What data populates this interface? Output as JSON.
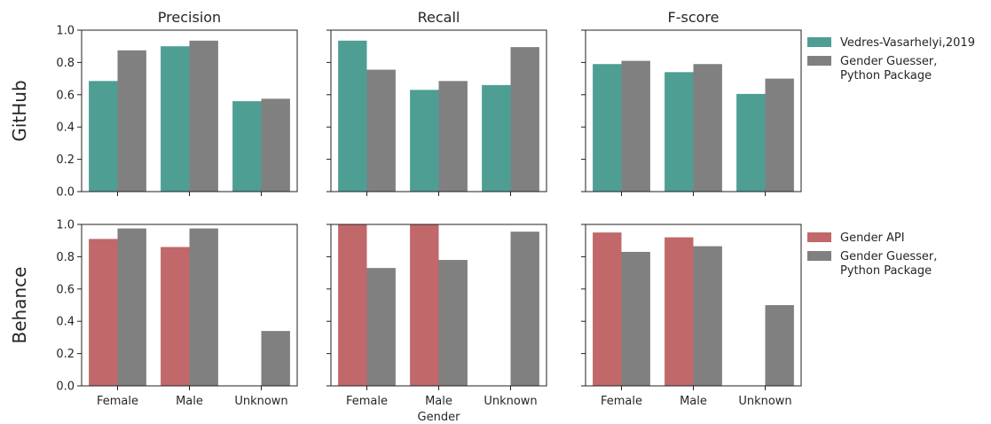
{
  "colors": {
    "teal": "#4e9e93",
    "red": "#c0686a",
    "gray": "#808080"
  },
  "chart_data": [
    {
      "type": "bar",
      "row": "GitHub",
      "title": "Precision",
      "categories": [
        "Female",
        "Male",
        "Unknown"
      ],
      "series": [
        {
          "name": "Vedres-Vasarhelyi,2019",
          "color": "teal",
          "values": [
            0.685,
            0.9,
            0.56
          ]
        },
        {
          "name": "Gender Guesser, Python Package",
          "color": "gray",
          "values": [
            0.875,
            0.935,
            0.575
          ]
        }
      ],
      "ylim": [
        0,
        1
      ],
      "yticks": [
        "0.0",
        "0.2",
        "0.4",
        "0.6",
        "0.8",
        "1.0"
      ],
      "xlabel": ""
    },
    {
      "type": "bar",
      "row": "GitHub",
      "title": "Recall",
      "categories": [
        "Female",
        "Male",
        "Unknown"
      ],
      "series": [
        {
          "name": "Vedres-Vasarhelyi,2019",
          "color": "teal",
          "values": [
            0.935,
            0.63,
            0.66
          ]
        },
        {
          "name": "Gender Guesser, Python Package",
          "color": "gray",
          "values": [
            0.755,
            0.685,
            0.895
          ]
        }
      ],
      "ylim": [
        0,
        1
      ],
      "xlabel": ""
    },
    {
      "type": "bar",
      "row": "GitHub",
      "title": "F-score",
      "categories": [
        "Female",
        "Male",
        "Unknown"
      ],
      "series": [
        {
          "name": "Vedres-Vasarhelyi,2019",
          "color": "teal",
          "values": [
            0.79,
            0.74,
            0.605
          ]
        },
        {
          "name": "Gender Guesser, Python Package",
          "color": "gray",
          "values": [
            0.81,
            0.79,
            0.7
          ]
        }
      ],
      "ylim": [
        0,
        1
      ],
      "xlabel": ""
    },
    {
      "type": "bar",
      "row": "Behance",
      "title": "",
      "categories": [
        "Female",
        "Male",
        "Unknown"
      ],
      "series": [
        {
          "name": "Gender API",
          "color": "red",
          "values": [
            0.91,
            0.86,
            0
          ]
        },
        {
          "name": "Gender Guesser, Python Package",
          "color": "gray",
          "values": [
            0.975,
            0.975,
            0.34
          ]
        }
      ],
      "ylim": [
        0,
        1
      ],
      "yticks": [
        "0.0",
        "0.2",
        "0.4",
        "0.6",
        "0.8",
        "1.0"
      ],
      "xlabel": ""
    },
    {
      "type": "bar",
      "row": "Behance",
      "title": "",
      "categories": [
        "Female",
        "Male",
        "Unknown"
      ],
      "series": [
        {
          "name": "Gender API",
          "color": "red",
          "values": [
            1.0,
            1.0,
            0
          ]
        },
        {
          "name": "Gender Guesser, Python Package",
          "color": "gray",
          "values": [
            0.73,
            0.78,
            0.955
          ]
        }
      ],
      "ylim": [
        0,
        1
      ],
      "xlabel": "Gender"
    },
    {
      "type": "bar",
      "row": "Behance",
      "title": "",
      "categories": [
        "Female",
        "Male",
        "Unknown"
      ],
      "series": [
        {
          "name": "Gender API",
          "color": "red",
          "values": [
            0.95,
            0.92,
            0
          ]
        },
        {
          "name": "Gender Guesser, Python Package",
          "color": "gray",
          "values": [
            0.83,
            0.865,
            0.5
          ]
        }
      ],
      "ylim": [
        0,
        1
      ],
      "xlabel": ""
    }
  ],
  "rows": [
    "GitHub",
    "Behance"
  ],
  "legends": [
    {
      "position": "right-top",
      "entries": [
        {
          "color": "teal",
          "lines": [
            "Vedres-Vasarhelyi,2019"
          ]
        },
        {
          "color": "gray",
          "lines": [
            "Gender Guesser,",
            "Python Package"
          ]
        }
      ]
    },
    {
      "position": "right-bottom",
      "entries": [
        {
          "color": "red",
          "lines": [
            "Gender API"
          ]
        },
        {
          "color": "gray",
          "lines": [
            "Gender Guesser,",
            "Python Package"
          ]
        }
      ]
    }
  ]
}
